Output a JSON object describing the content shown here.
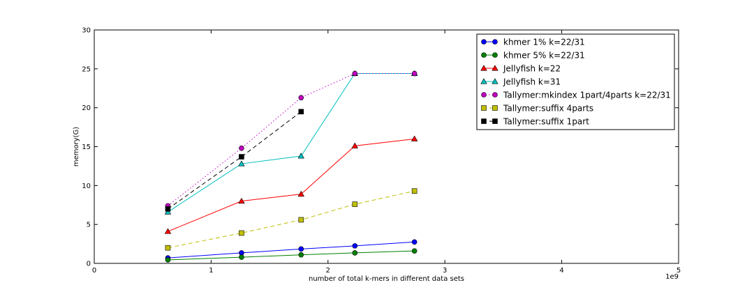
{
  "chart_data": {
    "type": "line",
    "xlabel": "number of total k-mers in different data sets",
    "ylabel": "memory(G)",
    "x_offset_text": "1e9",
    "xlim": [
      0,
      5
    ],
    "ylim": [
      0,
      30
    ],
    "xticks": [
      0,
      1,
      2,
      3,
      4,
      5
    ],
    "yticks": [
      0,
      5,
      10,
      15,
      20,
      25,
      30
    ],
    "xtick_labels": [
      "0",
      "1",
      "2",
      "3",
      "4",
      "5"
    ],
    "ytick_labels": [
      "0",
      "5",
      "10",
      "15",
      "20",
      "25",
      "30"
    ],
    "legend_position": "top-right",
    "grid": false,
    "series": [
      {
        "name": "khmer 1% k=22/31",
        "color": "#0000ff",
        "marker": "circle",
        "line": "solid",
        "x": [
          0.63,
          1.26,
          1.77,
          2.23,
          2.74
        ],
        "y": [
          0.7,
          1.35,
          1.85,
          2.25,
          2.75
        ]
      },
      {
        "name": "khmer 5% k=22/31",
        "color": "#008000",
        "marker": "circle",
        "line": "solid",
        "x": [
          0.63,
          1.26,
          1.77,
          2.23,
          2.74
        ],
        "y": [
          0.45,
          0.8,
          1.1,
          1.35,
          1.6
        ]
      },
      {
        "name": "Jellyfish k=22",
        "color": "#ff0000",
        "marker": "triangle",
        "line": "solid",
        "x": [
          0.63,
          1.26,
          1.77,
          2.23,
          2.74
        ],
        "y": [
          4.1,
          8.0,
          8.9,
          15.1,
          16.0
        ]
      },
      {
        "name": "Jellyfish k=31",
        "color": "#00bfbf",
        "marker": "triangle",
        "line": "solid",
        "x": [
          0.63,
          1.26,
          1.77,
          2.23,
          2.74
        ],
        "y": [
          6.6,
          12.8,
          13.8,
          24.4,
          24.4
        ]
      },
      {
        "name": "Tallymer:mkindex 1part/4parts k=22/31",
        "color": "#bf00bf",
        "marker": "circle",
        "line": "dotted",
        "x": [
          0.63,
          1.26,
          1.77,
          2.23,
          2.74
        ],
        "y": [
          7.4,
          14.8,
          21.3,
          24.4,
          24.4
        ]
      },
      {
        "name": "Tallymer:suffix 4parts",
        "color": "#bfbf00",
        "marker": "square",
        "line": "dashed",
        "x": [
          0.63,
          1.26,
          1.77,
          2.23,
          2.74
        ],
        "y": [
          2.0,
          3.9,
          5.6,
          7.6,
          9.3
        ]
      },
      {
        "name": "Tallymer:suffix 1part",
        "color": "#000000",
        "marker": "square",
        "line": "dashed",
        "x": [
          0.63,
          1.26,
          1.77
        ],
        "y": [
          7.0,
          13.7,
          19.5
        ]
      }
    ]
  }
}
